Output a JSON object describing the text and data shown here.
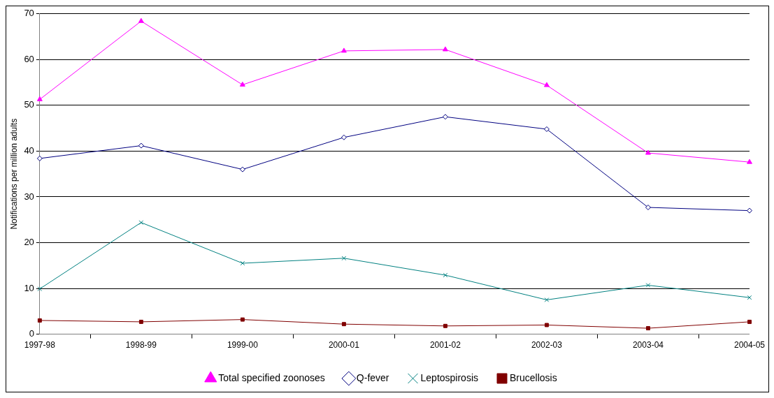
{
  "chart_data": {
    "type": "line",
    "ylabel": "Notifications per million adults",
    "categories": [
      "1997-98",
      "1998-99",
      "1999-00",
      "2000-01",
      "2001-02",
      "2002-03",
      "2003-04",
      "2004-05"
    ],
    "series": [
      {
        "name": "Total specified zoonoses",
        "color": "#ff00ff",
        "marker": "triangle",
        "values": [
          51.3,
          68.4,
          54.5,
          61.9,
          62.2,
          54.4,
          39.6,
          37.6
        ]
      },
      {
        "name": "Q-fever",
        "color": "#000080",
        "marker": "diamond",
        "values": [
          38.4,
          41.2,
          36.0,
          43.0,
          47.5,
          44.8,
          27.7,
          27.0
        ]
      },
      {
        "name": "Leptospirosis",
        "color": "#008080",
        "marker": "cross",
        "values": [
          9.9,
          24.4,
          15.5,
          16.6,
          12.9,
          7.5,
          10.7,
          8.0
        ]
      },
      {
        "name": "Brucellosis",
        "color": "#800000",
        "marker": "square",
        "values": [
          3.0,
          2.7,
          3.2,
          2.2,
          1.8,
          2.0,
          1.3,
          2.7
        ]
      }
    ],
    "ylim": [
      0,
      70
    ],
    "yticks": [
      0,
      10,
      20,
      30,
      40,
      50,
      60,
      70
    ],
    "grid": "y",
    "legend": "bottom",
    "line_style": "solid"
  }
}
